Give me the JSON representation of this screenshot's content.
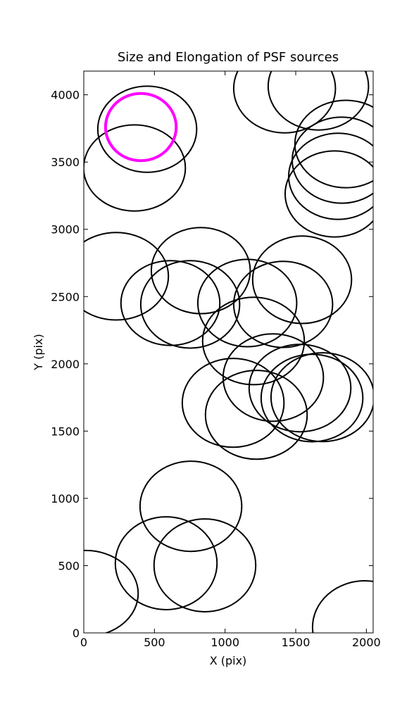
{
  "chart_data": {
    "type": "ellipse",
    "title": "Size and Elongation of PSF sources",
    "xlabel": "X (pix)",
    "ylabel": "Y (pix)",
    "xlim": [
      0,
      2048
    ],
    "ylim": [
      0,
      4176
    ],
    "xticks": [
      0,
      500,
      1000,
      1500,
      2000
    ],
    "yticks": [
      0,
      500,
      1000,
      1500,
      2000,
      2500,
      3000,
      3500,
      4000
    ],
    "series": [
      {
        "color": "#000000",
        "line_width": 2,
        "x": [
          449,
          359,
          1421,
          1660,
          1854,
          1825,
          1800,
          1775,
          229,
          828,
          613,
          753,
          1157,
          1545,
          1411,
          1201,
          1341,
          1057,
          1221,
          1530,
          1615,
          1690,
          758,
          583,
          857,
          10,
          1989
        ],
        "y": [
          3744,
          3456,
          4047,
          4063,
          3634,
          3514,
          3394,
          3263,
          2651,
          2693,
          2452,
          2442,
          2452,
          2625,
          2442,
          2170,
          1898,
          1710,
          1621,
          1820,
          1746,
          1752,
          941,
          518,
          502,
          293,
          42
        ],
        "width": [
          700,
          720,
          720,
          710,
          720,
          700,
          700,
          700,
          740,
          700,
          700,
          700,
          700,
          700,
          700,
          720,
          710,
          720,
          720,
          720,
          720,
          730,
          720,
          720,
          720,
          750,
          740
        ],
        "height": [
          640,
          640,
          660,
          650,
          650,
          640,
          640,
          640,
          650,
          640,
          630,
          650,
          650,
          650,
          640,
          650,
          650,
          660,
          660,
          650,
          650,
          660,
          670,
          690,
          690,
          640,
          690
        ]
      },
      {
        "color": "#ff00ff",
        "line_width": 4,
        "x": [
          404
        ],
        "y": [
          3760
        ],
        "width": [
          500
        ],
        "height": [
          500
        ]
      }
    ]
  }
}
